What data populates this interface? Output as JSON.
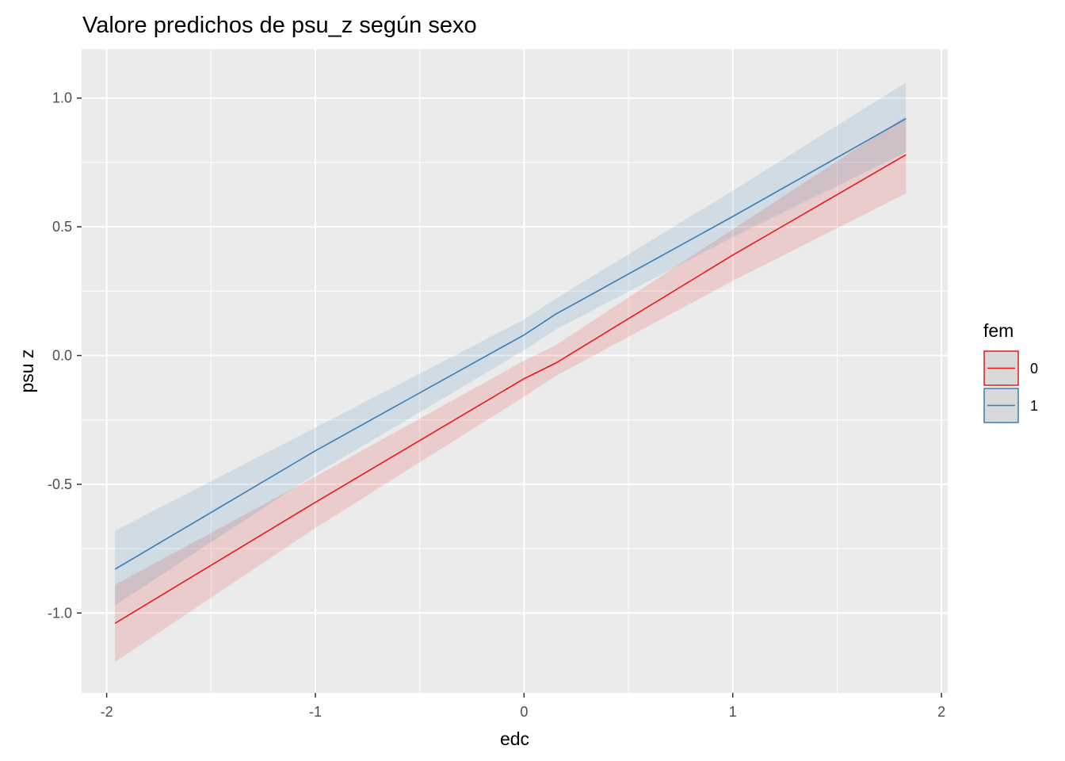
{
  "chart_data": {
    "type": "line",
    "title": "Valore predichos de psu_z según sexo",
    "xlabel": "edc",
    "ylabel": "psu z",
    "xlim": [
      -2.12,
      2.03
    ],
    "ylim": [
      -1.31,
      1.19
    ],
    "x_ticks": [
      -2,
      -1,
      0,
      1,
      2
    ],
    "x_tick_labels": [
      "-2",
      "-1",
      "0",
      "1",
      "2"
    ],
    "y_ticks": [
      -1.0,
      -0.5,
      0.0,
      0.5,
      1.0
    ],
    "y_tick_labels": [
      "-1.0",
      "-0.5",
      "0.0",
      "0.5",
      "1.0"
    ],
    "grid": true,
    "legend": {
      "title": "fem",
      "position": "right"
    },
    "series": [
      {
        "name": "0",
        "color": "#e41a1c",
        "x": [
          -1.96,
          -1.0,
          0.0,
          0.15,
          1.0,
          1.83
        ],
        "y": [
          -1.04,
          -0.57,
          -0.09,
          -0.03,
          0.39,
          0.78
        ],
        "ci_lower": [
          -1.19,
          -0.67,
          -0.16,
          -0.08,
          0.29,
          0.63
        ],
        "ci_upper": [
          -0.89,
          -0.47,
          -0.02,
          0.04,
          0.49,
          0.93
        ]
      },
      {
        "name": "1",
        "color": "#377eb8",
        "x": [
          -1.96,
          -1.0,
          0.0,
          0.15,
          1.0,
          1.83
        ],
        "y": [
          -0.83,
          -0.37,
          0.08,
          0.16,
          0.54,
          0.92
        ],
        "ci_lower": [
          -0.97,
          -0.46,
          0.02,
          0.1,
          0.46,
          0.79
        ],
        "ci_upper": [
          -0.68,
          -0.28,
          0.14,
          0.22,
          0.64,
          1.06
        ]
      }
    ]
  }
}
